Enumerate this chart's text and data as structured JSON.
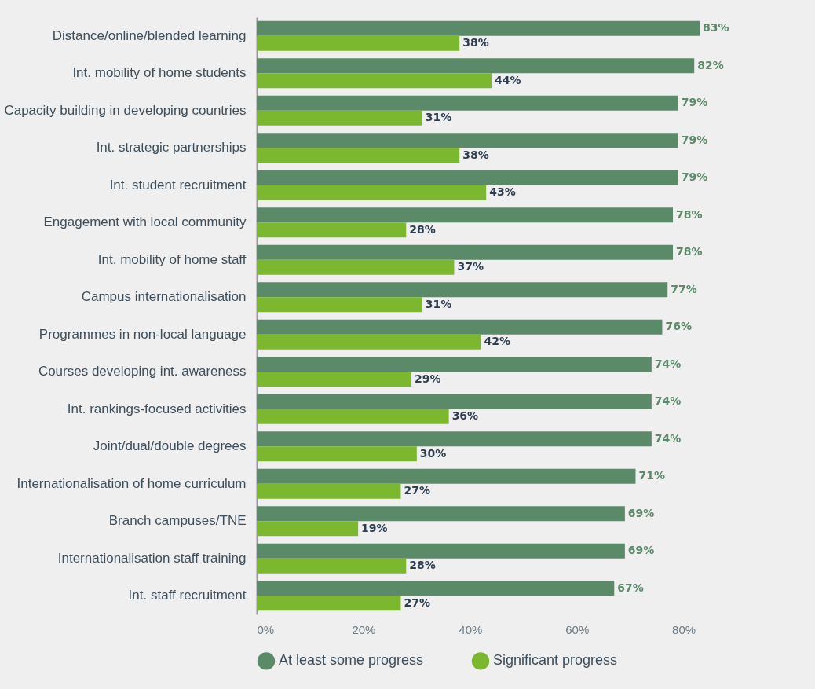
{
  "chart_data": {
    "type": "bar",
    "orientation": "horizontal",
    "categories": [
      "Distance/online/blended learning",
      "Int. mobility of home students",
      "Capacity building in developing countries",
      "Int. strategic partnerships",
      "Int. student recruitment",
      "Engagement with local community",
      "Int. mobility of home staff",
      "Campus internationalisation",
      "Programmes in non-local language",
      "Courses developing int. awareness",
      "Int. rankings-focused activities",
      "Joint/dual/double degrees",
      "Internationalisation of home curriculum",
      "Branch campuses/TNE",
      "Internationalisation staff training",
      "Int. staff recruitment"
    ],
    "series": [
      {
        "name": "At least some progress",
        "color": "#5b8a68",
        "values": [
          83,
          82,
          79,
          79,
          79,
          78,
          78,
          77,
          76,
          74,
          74,
          74,
          71,
          69,
          69,
          67
        ],
        "value_labels": [
          "83%",
          "82%",
          "79%",
          "79%",
          "79%",
          "78%",
          "78%",
          "77%",
          "76%",
          "74%",
          "74%",
          "74%",
          "71%",
          "69%",
          "69%",
          "67%"
        ]
      },
      {
        "name": "Significant progress",
        "color": "#7cb82f",
        "values": [
          38,
          44,
          31,
          38,
          43,
          28,
          37,
          31,
          42,
          29,
          36,
          30,
          27,
          19,
          28,
          27
        ],
        "value_labels": [
          "38%",
          "44%",
          "31%",
          "38%",
          "43%",
          "28%",
          "37%",
          "31%",
          "42%",
          "29%",
          "36%",
          "30%",
          "27%",
          "19%",
          "28%",
          "27%"
        ]
      }
    ],
    "xlim": [
      0,
      83
    ],
    "xticks": [
      {
        "value": 0,
        "label": "0%"
      },
      {
        "value": 20,
        "label": "20%"
      },
      {
        "value": 40,
        "label": "40%"
      },
      {
        "value": 60,
        "label": "60%"
      },
      {
        "value": 80,
        "label": "80%"
      }
    ],
    "legend": "bottom"
  }
}
